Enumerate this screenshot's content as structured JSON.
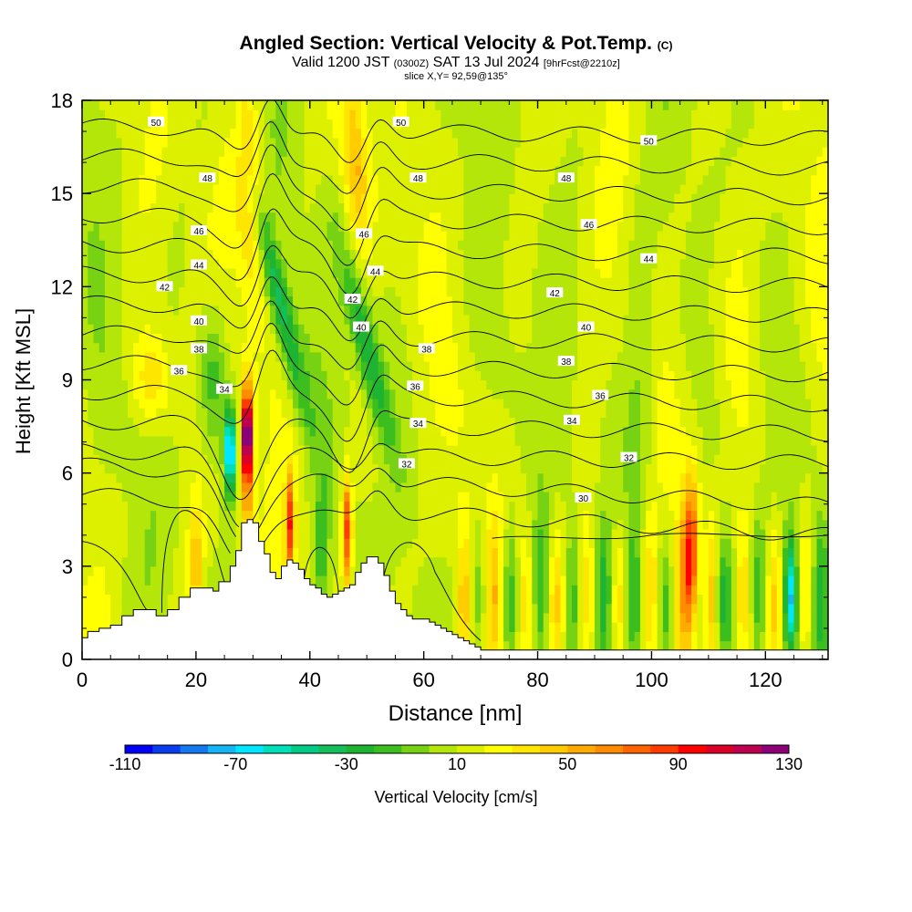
{
  "chart_data": {
    "type": "heatmap",
    "title": "Angled Section: Vertical Velocity & Pot.Temp.",
    "title_mark": "(C)",
    "subtitle_parts": [
      "Valid 1200 JST",
      "(0300Z)",
      "SAT 13 Jul 2024",
      "[9hrFcst@2210z]"
    ],
    "slice_label": "slice X,Y= 92,59@135°",
    "xlabel": "Distance [nm]",
    "ylabel": "Height [Kft MSL]",
    "xlim": [
      0,
      131
    ],
    "ylim": [
      0,
      18
    ],
    "x_ticks": [
      "0",
      "20",
      "40",
      "60",
      "80",
      "100",
      "120"
    ],
    "y_ticks": [
      "0",
      "3",
      "6",
      "9",
      "12",
      "15",
      "18"
    ],
    "colorbar": {
      "label": "Vertical Velocity [cm/s]",
      "tick_labels": [
        "-110",
        "-70",
        "-30",
        "10",
        "50",
        "90",
        "130"
      ],
      "min": -110,
      "max": 130,
      "step": 10,
      "colors": [
        "#0000f5",
        "#0a3cf0",
        "#1478f0",
        "#14b4f5",
        "#00e6ff",
        "#00e0b8",
        "#00cc88",
        "#14be5a",
        "#1eb432",
        "#3cbe1e",
        "#78d214",
        "#b4e60a",
        "#dcf000",
        "#ffff00",
        "#ffe600",
        "#ffcc00",
        "#ffaa00",
        "#ff8c00",
        "#ff6400",
        "#ff3c00",
        "#ff0000",
        "#dc0028",
        "#be0050",
        "#8c0078"
      ]
    },
    "contour_levels": [
      30,
      32,
      34,
      36,
      38,
      40,
      42,
      44,
      46,
      48,
      50
    ],
    "contour_labels": [
      {
        "text": "50",
        "x": 13.0,
        "y": 17.3
      },
      {
        "text": "48",
        "x": 22.0,
        "y": 15.5
      },
      {
        "text": "46",
        "x": 20.5,
        "y": 13.8
      },
      {
        "text": "44",
        "x": 20.5,
        "y": 12.7
      },
      {
        "text": "42",
        "x": 14.5,
        "y": 12.0
      },
      {
        "text": "40",
        "x": 20.5,
        "y": 10.9
      },
      {
        "text": "38",
        "x": 20.5,
        "y": 10.0
      },
      {
        "text": "36",
        "x": 17.0,
        "y": 9.3
      },
      {
        "text": "34",
        "x": 25.0,
        "y": 8.7
      },
      {
        "text": "50",
        "x": 56.0,
        "y": 17.3
      },
      {
        "text": "48",
        "x": 59.0,
        "y": 15.5
      },
      {
        "text": "46",
        "x": 49.5,
        "y": 13.7
      },
      {
        "text": "44",
        "x": 51.5,
        "y": 12.5
      },
      {
        "text": "42",
        "x": 47.5,
        "y": 11.6
      },
      {
        "text": "40",
        "x": 49.0,
        "y": 10.7
      },
      {
        "text": "38",
        "x": 60.5,
        "y": 10.0
      },
      {
        "text": "36",
        "x": 58.5,
        "y": 8.8
      },
      {
        "text": "34",
        "x": 59.0,
        "y": 7.6
      },
      {
        "text": "32",
        "x": 57.0,
        "y": 6.3
      },
      {
        "text": "30",
        "x": 88.0,
        "y": 5.2
      },
      {
        "text": "32",
        "x": 96.0,
        "y": 6.5
      },
      {
        "text": "34",
        "x": 86.0,
        "y": 7.7
      },
      {
        "text": "36",
        "x": 91.0,
        "y": 8.5
      },
      {
        "text": "38",
        "x": 85.0,
        "y": 9.6
      },
      {
        "text": "40",
        "x": 88.5,
        "y": 10.7
      },
      {
        "text": "42",
        "x": 83.0,
        "y": 11.8
      },
      {
        "text": "44",
        "x": 99.5,
        "y": 12.9
      },
      {
        "text": "46",
        "x": 89.0,
        "y": 14.0
      },
      {
        "text": "48",
        "x": 85.0,
        "y": 15.5
      },
      {
        "text": "50",
        "x": 99.5,
        "y": 16.7
      }
    ],
    "terrain": [
      [
        0,
        0.7
      ],
      [
        1,
        0.9
      ],
      [
        3,
        1.0
      ],
      [
        5,
        1.1
      ],
      [
        7,
        1.4
      ],
      [
        9,
        1.6
      ],
      [
        11,
        1.6
      ],
      [
        13,
        1.4
      ],
      [
        15,
        1.6
      ],
      [
        17,
        2.0
      ],
      [
        19,
        2.3
      ],
      [
        21,
        2.3
      ],
      [
        23,
        2.2
      ],
      [
        24,
        2.5
      ],
      [
        25,
        2.5
      ],
      [
        26,
        3.0
      ],
      [
        27,
        3.5
      ],
      [
        28,
        4.4
      ],
      [
        29,
        4.5
      ],
      [
        30,
        4.4
      ],
      [
        31,
        3.8
      ],
      [
        32,
        3.4
      ],
      [
        33,
        2.8
      ],
      [
        34,
        2.6
      ],
      [
        35,
        3.0
      ],
      [
        36,
        3.2
      ],
      [
        37,
        3.1
      ],
      [
        38,
        2.9
      ],
      [
        39,
        2.6
      ],
      [
        40,
        2.4
      ],
      [
        41,
        2.3
      ],
      [
        42,
        2.1
      ],
      [
        43,
        2.0
      ],
      [
        44,
        2.1
      ],
      [
        45,
        2.2
      ],
      [
        46,
        2.3
      ],
      [
        47,
        2.4
      ],
      [
        48,
        2.8
      ],
      [
        49,
        3.1
      ],
      [
        50,
        3.3
      ],
      [
        51,
        3.3
      ],
      [
        52,
        3.1
      ],
      [
        53,
        2.7
      ],
      [
        54,
        2.2
      ],
      [
        55,
        1.8
      ],
      [
        56,
        1.6
      ],
      [
        57,
        1.4
      ],
      [
        58,
        1.3
      ],
      [
        59,
        1.3
      ],
      [
        60,
        1.3
      ],
      [
        61,
        1.2
      ],
      [
        62,
        1.1
      ],
      [
        63,
        1.0
      ],
      [
        64,
        0.9
      ],
      [
        65,
        0.8
      ],
      [
        66,
        0.7
      ],
      [
        67,
        0.6
      ],
      [
        68,
        0.5
      ],
      [
        69,
        0.4
      ],
      [
        70,
        0.3
      ],
      [
        72,
        0.3
      ],
      [
        131,
        0.3
      ]
    ]
  }
}
